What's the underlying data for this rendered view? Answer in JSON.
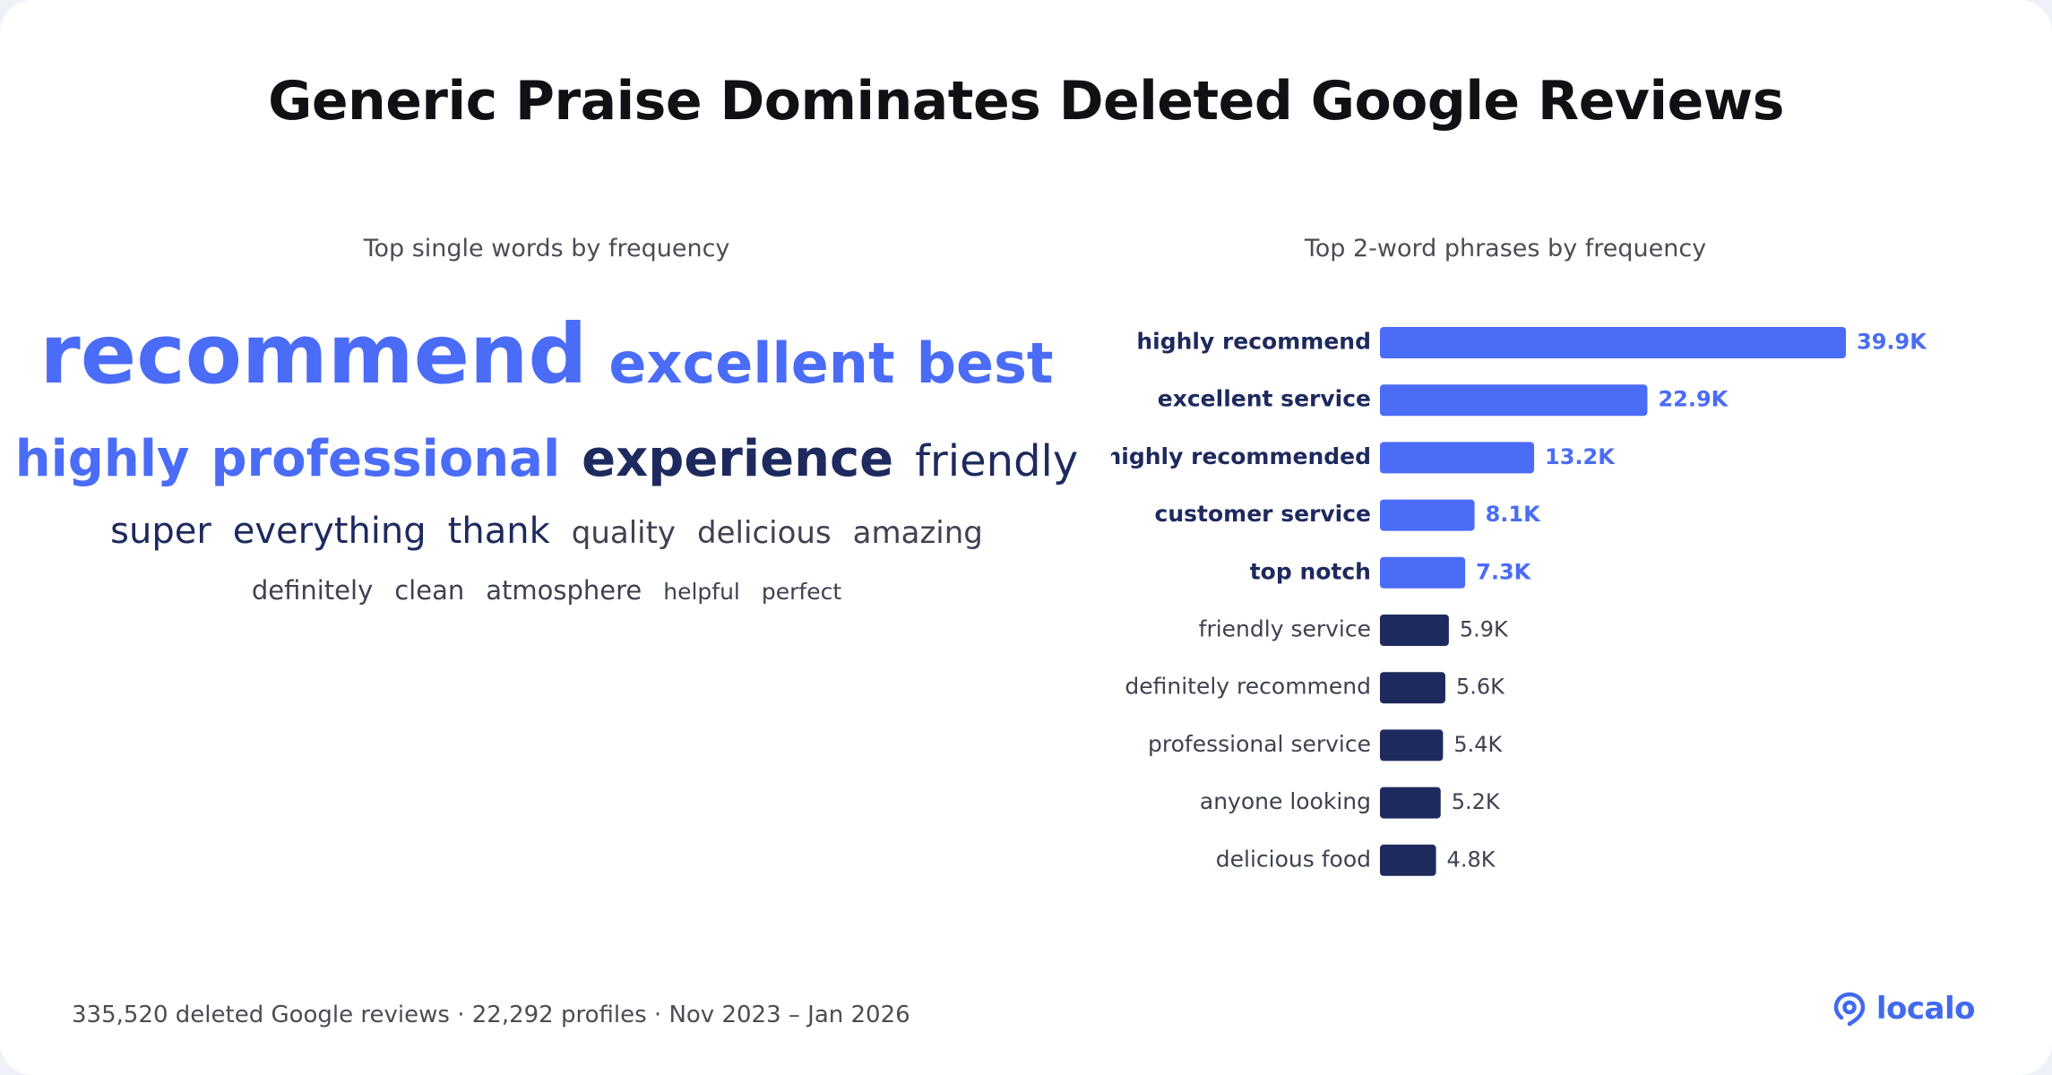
{
  "title": "Generic Praise Dominates Deleted Google Reviews",
  "left_panel": {
    "subtitle": "Top single words by frequency"
  },
  "right_panel": {
    "subtitle": "Top 2-word phrases by frequency"
  },
  "footer": "335,520 deleted Google reviews · 22,292 profiles · Nov 2023 – Jan 2026",
  "brand": {
    "name": "localo",
    "icon": "location-pin-icon",
    "color": "#4169f0"
  },
  "colors": {
    "accent": "#4a6cf7",
    "dark": "#1e2a5e",
    "muted": "#3e4250"
  },
  "word_cloud": {
    "rows": [
      [
        {
          "text": "recommend",
          "tier": 1,
          "color": "accent"
        },
        {
          "text": "excellent",
          "tier": 2,
          "color": "accent"
        },
        {
          "text": "best",
          "tier": 2,
          "color": "accent"
        }
      ],
      [
        {
          "text": "highly",
          "tier": 3,
          "color": "accent"
        },
        {
          "text": "professional",
          "tier": 3,
          "color": "accent"
        },
        {
          "text": "experience",
          "tier": 3,
          "color": "dark"
        },
        {
          "text": "friendly",
          "tier": 4,
          "color": "dark"
        }
      ],
      [
        {
          "text": "super",
          "tier": 5,
          "color": "dark"
        },
        {
          "text": "everything",
          "tier": 5,
          "color": "dark"
        },
        {
          "text": "thank",
          "tier": 5,
          "color": "dark"
        },
        {
          "text": "quality",
          "tier": 6,
          "color": "muted"
        },
        {
          "text": "delicious",
          "tier": 6,
          "color": "muted"
        },
        {
          "text": "amazing",
          "tier": 6,
          "color": "muted"
        }
      ],
      [
        {
          "text": "definitely",
          "tier": 7,
          "color": "muted"
        },
        {
          "text": "clean",
          "tier": 7,
          "color": "muted"
        },
        {
          "text": "atmosphere",
          "tier": 7,
          "color": "muted"
        },
        {
          "text": "helpful",
          "tier": 8,
          "color": "muted"
        },
        {
          "text": "perfect",
          "tier": 8,
          "color": "muted"
        }
      ]
    ]
  },
  "chart_data": {
    "type": "bar",
    "orientation": "horizontal",
    "title": "Top 2-word phrases by frequency",
    "categories": [
      "highly recommend",
      "excellent service",
      "highly recommended",
      "customer service",
      "top notch",
      "friendly service",
      "definitely recommend",
      "professional service",
      "anyone looking",
      "delicious food"
    ],
    "values": [
      39900,
      22900,
      13200,
      8100,
      7300,
      5900,
      5600,
      5400,
      5200,
      4800
    ],
    "labels": [
      "39.9K",
      "22.9K",
      "13.2K",
      "8.1K",
      "7.3K",
      "5.9K",
      "5.6K",
      "5.4K",
      "5.2K",
      "4.8K"
    ],
    "highlight_count": 5,
    "highlight_color": "#4a6cf7",
    "base_color": "#1e2a5e",
    "grid": false,
    "legend": "none"
  }
}
